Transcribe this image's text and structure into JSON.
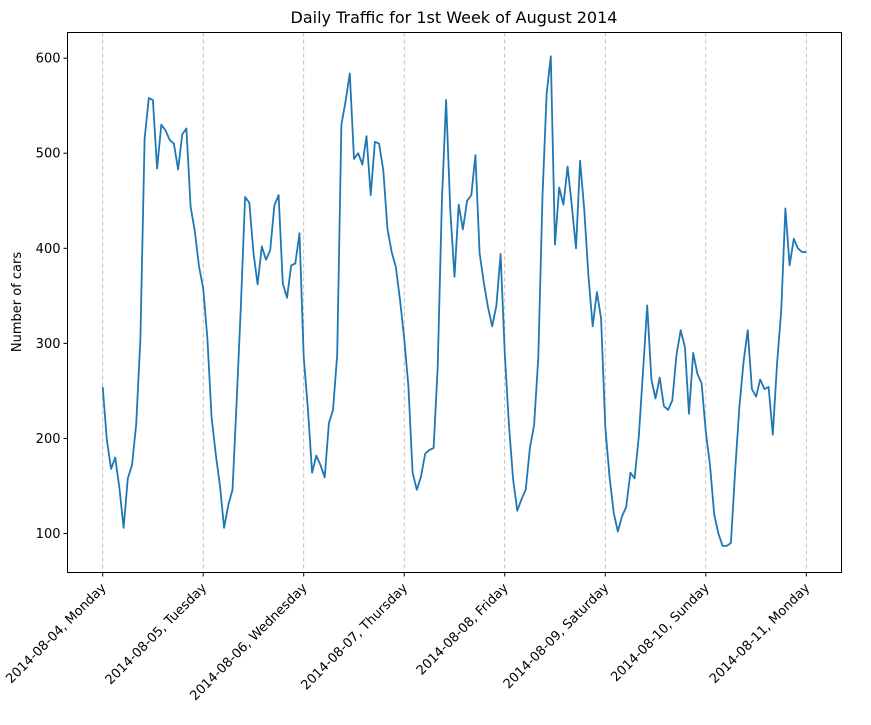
{
  "chart_data": {
    "type": "line",
    "title": "Daily Traffic for 1st Week of August 2014",
    "xlabel": "",
    "ylabel": "Number of cars",
    "x_start": "2014-08-04 00:00",
    "x_frequency": "hourly",
    "xticks": [
      "2014-08-04, Monday",
      "2014-08-05, Tuesday",
      "2014-08-06, Wednesday",
      "2014-08-07, Thursday",
      "2014-08-08, Friday",
      "2014-08-09, Saturday",
      "2014-08-10, Sunday",
      "2014-08-11, Monday"
    ],
    "yticks": [
      100,
      200,
      300,
      400,
      500,
      600
    ],
    "ylim": [
      59,
      627
    ],
    "grid": "vertical dashed at day ticks",
    "color": "#1f77b4",
    "values": [
      254,
      198,
      168,
      180,
      148,
      106,
      158,
      172,
      215,
      305,
      515,
      558,
      556,
      484,
      530,
      524,
      514,
      510,
      483,
      520,
      526,
      444,
      418,
      381,
      358,
      305,
      222,
      183,
      150,
      106,
      130,
      146,
      240,
      340,
      454,
      448,
      395,
      362,
      402,
      388,
      398,
      445,
      456,
      363,
      348,
      382,
      384,
      416,
      286,
      231,
      164,
      182,
      172,
      159,
      216,
      230,
      288,
      530,
      555,
      584,
      494,
      500,
      488,
      518,
      456,
      512,
      510,
      482,
      420,
      396,
      380,
      345,
      305,
      255,
      164,
      146,
      160,
      184,
      188,
      190,
      275,
      450,
      556,
      440,
      370,
      446,
      420,
      450,
      456,
      498,
      395,
      364,
      338,
      318,
      340,
      394,
      289,
      215,
      157,
      124,
      136,
      146,
      190,
      214,
      285,
      455,
      562,
      602,
      404,
      464,
      446,
      486,
      445,
      400,
      492,
      440,
      370,
      318,
      354,
      326,
      212,
      160,
      122,
      102,
      118,
      128,
      164,
      158,
      202,
      270,
      340,
      262,
      242,
      264,
      234,
      230,
      240,
      288,
      314,
      296,
      226,
      290,
      268,
      258,
      207,
      172,
      120,
      100,
      87,
      87,
      90,
      165,
      232,
      280,
      314,
      252,
      244,
      262,
      252,
      254,
      204,
      278,
      334,
      442,
      382,
      410,
      400,
      396,
      396
    ]
  }
}
